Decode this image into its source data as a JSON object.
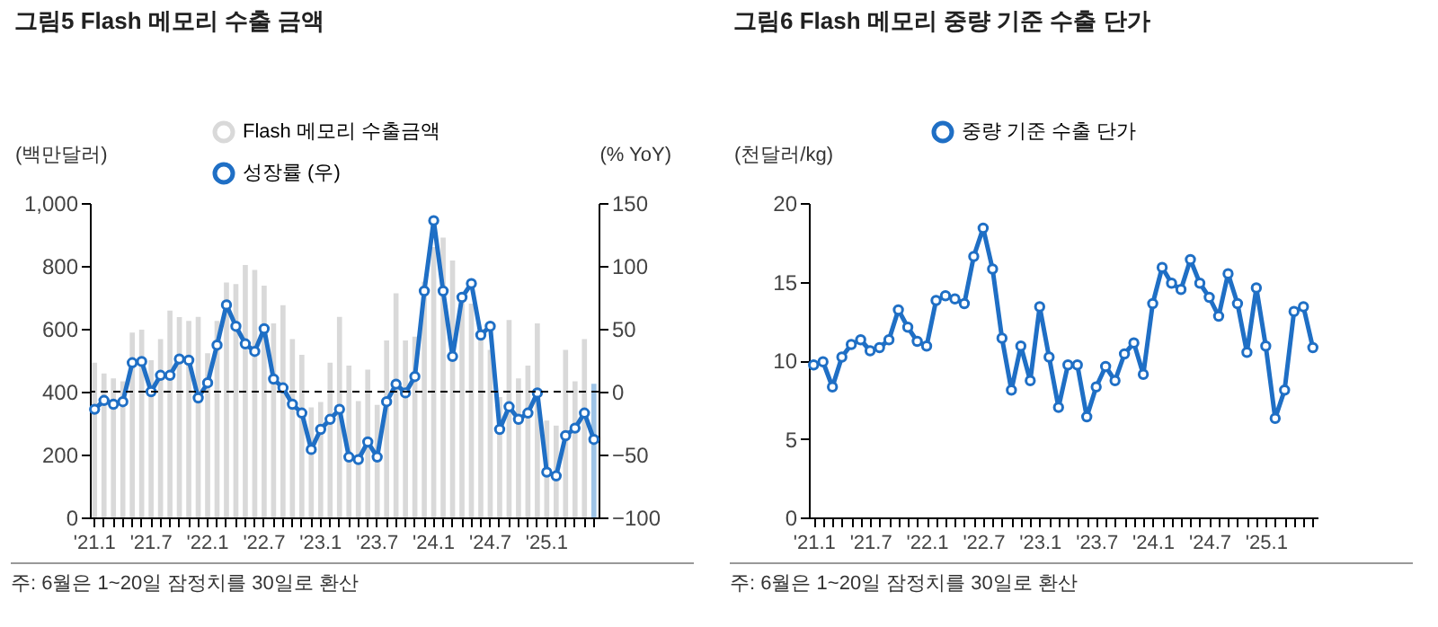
{
  "chart_data": [
    {
      "type": "bar",
      "title": "그림5  Flash 메모리 수출 금액",
      "ylabel": "(백만달러)",
      "y2label": "(% YoY)",
      "annotations": [
        "주: 6월은 1~20일 잠정치를 30일로 환산"
      ],
      "categories": [
        "'21.1",
        null,
        null,
        null,
        null,
        null,
        "'21.7",
        null,
        null,
        null,
        null,
        null,
        "'22.1",
        null,
        null,
        null,
        null,
        null,
        "'22.7",
        null,
        null,
        null,
        null,
        null,
        "'23.1",
        null,
        null,
        null,
        null,
        null,
        "'23.7",
        null,
        null,
        null,
        null,
        null,
        "'24.1",
        null,
        null,
        null,
        null,
        null,
        "'24.7",
        null,
        null,
        null,
        null,
        null,
        "'25.1",
        null,
        null,
        null,
        null,
        null
      ],
      "series": [
        {
          "name": "Flash 메모리 수출금액",
          "type": "bar",
          "color": "#d9d9d9",
          "colors": [
            "#d9d9d9",
            "#d9d9d9",
            "#d9d9d9",
            "#d9d9d9",
            "#d9d9d9",
            "#d9d9d9",
            "#d9d9d9",
            "#d9d9d9",
            "#d9d9d9",
            "#d9d9d9",
            "#d9d9d9",
            "#d9d9d9",
            "#d9d9d9",
            "#d9d9d9",
            "#d9d9d9",
            "#d9d9d9",
            "#d9d9d9",
            "#d9d9d9",
            "#d9d9d9",
            "#d9d9d9",
            "#d9d9d9",
            "#d9d9d9",
            "#d9d9d9",
            "#d9d9d9",
            "#d9d9d9",
            "#d9d9d9",
            "#d9d9d9",
            "#d9d9d9",
            "#d9d9d9",
            "#d9d9d9",
            "#d9d9d9",
            "#d9d9d9",
            "#d9d9d9",
            "#d9d9d9",
            "#d9d9d9",
            "#d9d9d9",
            "#d9d9d9",
            "#d9d9d9",
            "#d9d9d9",
            "#d9d9d9",
            "#d9d9d9",
            "#d9d9d9",
            "#d9d9d9",
            "#d9d9d9",
            "#d9d9d9",
            "#d9d9d9",
            "#d9d9d9",
            "#d9d9d9",
            "#d9d9d9",
            "#d9d9d9",
            "#d9d9d9",
            "#d9d9d9",
            "#d9d9d9",
            "#9dc3e6"
          ],
          "values": [
            492,
            458,
            442,
            433,
            588,
            597,
            500,
            567,
            658,
            637,
            625,
            638,
            522,
            625,
            747,
            742,
            803,
            787,
            737,
            617,
            675,
            567,
            517,
            350,
            367,
            492,
            638,
            483,
            370,
            470,
            358,
            563,
            713,
            563,
            575,
            750,
            860,
            890,
            817,
            692,
            680,
            600,
            533,
            383,
            628,
            442,
            483,
            617,
            308,
            292,
            533,
            433,
            567,
            425
          ]
        },
        {
          "name": "성장률 (우)",
          "type": "line",
          "axis": "y2",
          "color": "#1f6fc5",
          "values": [
            -14,
            -7,
            -10,
            -8,
            23,
            24,
            0,
            13,
            13,
            26,
            25,
            -5,
            7,
            37,
            69,
            52,
            38,
            32,
            50,
            10,
            3,
            -10,
            -17,
            -46,
            -30,
            -22,
            -14,
            -52,
            -54,
            -40,
            -52,
            -8,
            6,
            -1,
            12,
            80,
            136,
            80,
            28,
            75,
            86,
            45,
            52,
            -30,
            -12,
            -22,
            -17,
            -1,
            -64,
            -67,
            -35,
            -29,
            -17,
            -38
          ]
        }
      ],
      "ylim": [
        0,
        1000
      ],
      "yticks": [
        0,
        200,
        400,
        600,
        800,
        {
          "value": 1000,
          "label": "1,000"
        }
      ],
      "y2lim": [
        -100,
        150
      ],
      "y2ticks": [
        -100,
        -50,
        0,
        50,
        100,
        150
      ],
      "ref_lines": [
        {
          "axis": "y2",
          "value": 0,
          "color": "#000000",
          "line_style": "dashed"
        }
      ],
      "grid": false,
      "legend": "top",
      "marker": "circle",
      "line_style": "solid"
    },
    {
      "type": "line",
      "title": "그림6  Flash 메모리 중량 기준 수출 단가",
      "ylabel": "(천달러/kg)",
      "annotations": [
        "주: 6월은 1~20일 잠정치를 30일로 환산"
      ],
      "categories": [
        "'21.1",
        null,
        null,
        null,
        null,
        null,
        "'21.7",
        null,
        null,
        null,
        null,
        null,
        "'22.1",
        null,
        null,
        null,
        null,
        null,
        "'22.7",
        null,
        null,
        null,
        null,
        null,
        "'23.1",
        null,
        null,
        null,
        null,
        null,
        "'23.7",
        null,
        null,
        null,
        null,
        null,
        "'24.1",
        null,
        null,
        null,
        null,
        null,
        "'24.7",
        null,
        null,
        null,
        null,
        null,
        "'25.1",
        null,
        null,
        null,
        null,
        null
      ],
      "series": [
        {
          "name": "중량 기준 수출 단가",
          "color": "#1f6fc5",
          "values": [
            9.7,
            9.9,
            8.3,
            10.2,
            11,
            11.3,
            10.6,
            10.8,
            11.3,
            13.2,
            12.1,
            11.2,
            10.9,
            13.8,
            14.1,
            13.9,
            13.6,
            16.6,
            18.4,
            15.8,
            11.4,
            8.1,
            10.9,
            8.7,
            13.4,
            10.2,
            7.0,
            9.7,
            9.7,
            6.4,
            8.3,
            9.6,
            8.7,
            10.4,
            11.1,
            9.1,
            13.6,
            15.9,
            14.9,
            14.5,
            16.4,
            14.9,
            14.0,
            12.8,
            15.5,
            13.6,
            10.5,
            14.6,
            10.9,
            6.3,
            8.1,
            13.1,
            13.4,
            10.8
          ]
        }
      ],
      "ylim": [
        0,
        20
      ],
      "yticks": [
        0,
        5,
        10,
        15,
        20
      ],
      "grid": false,
      "legend": "top",
      "marker": "circle",
      "line_style": "solid"
    }
  ]
}
